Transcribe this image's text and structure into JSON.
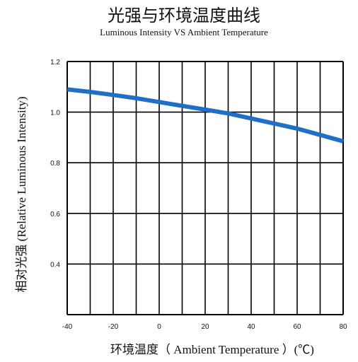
{
  "chart_data": {
    "type": "line",
    "title": "光强与环境温度曲线",
    "subtitle": "Luminous Intensity VS Ambient Temperature",
    "xlabel": "环境温度（ Ambient Temperature ）(℃)",
    "ylabel": "相对光强 (Relative Luminous Intensity)",
    "xlim": [
      -40,
      80
    ],
    "ylim": [
      0.2,
      1.2
    ],
    "x_ticks": [
      -40,
      -20,
      0,
      20,
      40,
      60,
      80
    ],
    "x_tick_labels": [
      "-40",
      "-20",
      "0",
      "20",
      "40",
      "60",
      "80"
    ],
    "y_ticks": [
      0.4,
      0.6,
      0.8,
      1.0,
      1.2
    ],
    "y_tick_labels": [
      "0.4",
      "0.6",
      "0.8",
      "1.0",
      "1.2"
    ],
    "grid": true,
    "series": [
      {
        "color": "#1f6fc7",
        "x": [
          -40,
          -30,
          -20,
          -10,
          0,
          10,
          20,
          30,
          40,
          50,
          60,
          70,
          80
        ],
        "y": [
          1.09,
          1.08,
          1.068,
          1.055,
          1.04,
          1.025,
          1.01,
          0.995,
          0.975,
          0.955,
          0.935,
          0.91,
          0.885
        ]
      }
    ]
  }
}
